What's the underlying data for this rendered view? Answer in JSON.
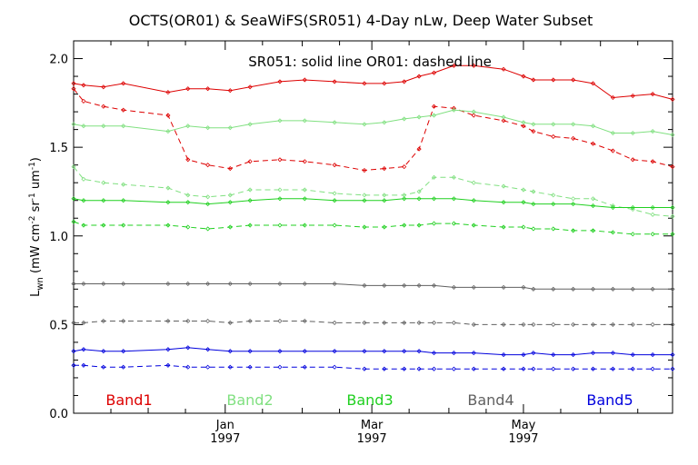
{
  "chart_data": {
    "type": "line",
    "title": "OCTS(OR01) & SeaWiFS(SR051) 4-Day nLw, Deep Water Subset",
    "annotation": "SR051: solid line   OR01: dashed line",
    "ylabel": "L_wn (mW cm^-2 sr^-1 um^-1)",
    "ylabel_parts": {
      "base": "L",
      "base_sub": "wn",
      "open": " (mW cm",
      "exp1": "-2",
      "mid1": " sr",
      "exp2": "-1",
      "mid2": " um",
      "exp3": "-1",
      "close": ")"
    },
    "ylim": [
      0.0,
      2.1
    ],
    "yticks": [
      0.0,
      0.5,
      1.0,
      1.5,
      2.0
    ],
    "ytick_labels": [
      "0.0",
      "0.5",
      "1.0",
      "1.5",
      "2.0"
    ],
    "xlim": [
      "1996-11-01",
      "1997-06-30"
    ],
    "xticks": [
      {
        "date": "1997-01-01",
        "month": "Jan",
        "year": "1997"
      },
      {
        "date": "1997-03-01",
        "month": "Mar",
        "year": "1997"
      },
      {
        "date": "1997-05-01",
        "month": "May",
        "year": "1997"
      }
    ],
    "x": [
      "1996-11-01",
      "1996-11-05",
      "1996-11-13",
      "1996-11-21",
      "1996-12-09",
      "1996-12-17",
      "1996-12-25",
      "1997-01-03",
      "1997-01-11",
      "1997-01-23",
      "1997-02-02",
      "1997-02-14",
      "1997-02-26",
      "1997-03-06",
      "1997-03-14",
      "1997-03-20",
      "1997-03-26",
      "1997-04-03",
      "1997-04-11",
      "1997-04-23",
      "1997-05-01",
      "1997-05-05",
      "1997-05-13",
      "1997-05-21",
      "1997-05-29",
      "1997-06-06",
      "1997-06-14",
      "1997-06-22",
      "1997-06-30"
    ],
    "series": [
      {
        "name": "Band1",
        "band": 1,
        "sensor": "SR051",
        "style": "solid",
        "color": "#dd0000",
        "values": [
          1.86,
          1.85,
          1.84,
          1.86,
          1.81,
          1.83,
          1.83,
          1.82,
          1.84,
          1.87,
          1.88,
          1.87,
          1.86,
          1.86,
          1.87,
          1.9,
          1.92,
          1.96,
          1.96,
          1.94,
          1.9,
          1.88,
          1.88,
          1.88,
          1.86,
          1.78,
          1.79,
          1.8,
          1.77
        ]
      },
      {
        "name": "Band1",
        "band": 1,
        "sensor": "OR01",
        "style": "dashed",
        "color": "#dd0000",
        "values": [
          1.83,
          1.76,
          1.73,
          1.71,
          1.68,
          1.43,
          1.4,
          1.38,
          1.42,
          1.43,
          1.42,
          1.4,
          1.37,
          1.38,
          1.39,
          1.49,
          1.73,
          1.72,
          1.68,
          1.65,
          1.62,
          1.59,
          1.56,
          1.55,
          1.52,
          1.48,
          1.43,
          1.42,
          1.39
        ]
      },
      {
        "name": "Band2",
        "band": 2,
        "sensor": "SR051",
        "style": "solid",
        "color": "#80e080",
        "values": [
          1.63,
          1.62,
          1.62,
          1.62,
          1.59,
          1.62,
          1.61,
          1.61,
          1.63,
          1.65,
          1.65,
          1.64,
          1.63,
          1.64,
          1.66,
          1.67,
          1.68,
          1.71,
          1.7,
          1.67,
          1.64,
          1.63,
          1.63,
          1.63,
          1.62,
          1.58,
          1.58,
          1.59,
          1.57
        ]
      },
      {
        "name": "Band2",
        "band": 2,
        "sensor": "OR01",
        "style": "dashed",
        "color": "#80e080",
        "values": [
          1.39,
          1.32,
          1.3,
          1.29,
          1.27,
          1.23,
          1.22,
          1.23,
          1.26,
          1.26,
          1.26,
          1.24,
          1.23,
          1.23,
          1.23,
          1.25,
          1.33,
          1.33,
          1.3,
          1.28,
          1.26,
          1.25,
          1.23,
          1.21,
          1.21,
          1.17,
          1.15,
          1.12,
          1.11
        ]
      },
      {
        "name": "Band3",
        "band": 3,
        "sensor": "SR051",
        "style": "solid",
        "color": "#20d020",
        "values": [
          1.21,
          1.2,
          1.2,
          1.2,
          1.19,
          1.19,
          1.18,
          1.19,
          1.2,
          1.21,
          1.21,
          1.2,
          1.2,
          1.2,
          1.21,
          1.21,
          1.21,
          1.21,
          1.2,
          1.19,
          1.19,
          1.18,
          1.18,
          1.18,
          1.17,
          1.16,
          1.16,
          1.16,
          1.16
        ]
      },
      {
        "name": "Band3",
        "band": 3,
        "sensor": "OR01",
        "style": "dashed",
        "color": "#20d020",
        "values": [
          1.08,
          1.06,
          1.06,
          1.06,
          1.06,
          1.05,
          1.04,
          1.05,
          1.06,
          1.06,
          1.06,
          1.06,
          1.05,
          1.05,
          1.06,
          1.06,
          1.07,
          1.07,
          1.06,
          1.05,
          1.05,
          1.04,
          1.04,
          1.03,
          1.03,
          1.02,
          1.01,
          1.01,
          1.01
        ]
      },
      {
        "name": "Band4",
        "band": 4,
        "sensor": "SR051",
        "style": "solid",
        "color": "#606060",
        "values": [
          0.73,
          0.73,
          0.73,
          0.73,
          0.73,
          0.73,
          0.73,
          0.73,
          0.73,
          0.73,
          0.73,
          0.73,
          0.72,
          0.72,
          0.72,
          0.72,
          0.72,
          0.71,
          0.71,
          0.71,
          0.71,
          0.7,
          0.7,
          0.7,
          0.7,
          0.7,
          0.7,
          0.7,
          0.7
        ]
      },
      {
        "name": "Band4",
        "band": 4,
        "sensor": "OR01",
        "style": "dashed",
        "color": "#606060",
        "values": [
          0.51,
          0.51,
          0.52,
          0.52,
          0.52,
          0.52,
          0.52,
          0.51,
          0.52,
          0.52,
          0.52,
          0.51,
          0.51,
          0.51,
          0.51,
          0.51,
          0.51,
          0.51,
          0.5,
          0.5,
          0.5,
          0.5,
          0.5,
          0.5,
          0.5,
          0.5,
          0.5,
          0.5,
          0.5
        ]
      },
      {
        "name": "Band5",
        "band": 5,
        "sensor": "SR051",
        "style": "solid",
        "color": "#0000dd",
        "values": [
          0.35,
          0.36,
          0.35,
          0.35,
          0.36,
          0.37,
          0.36,
          0.35,
          0.35,
          0.35,
          0.35,
          0.35,
          0.35,
          0.35,
          0.35,
          0.35,
          0.34,
          0.34,
          0.34,
          0.33,
          0.33,
          0.34,
          0.33,
          0.33,
          0.34,
          0.34,
          0.33,
          0.33,
          0.33
        ]
      },
      {
        "name": "Band5",
        "band": 5,
        "sensor": "OR01",
        "style": "dashed",
        "color": "#0000dd",
        "values": [
          0.27,
          0.27,
          0.26,
          0.26,
          0.27,
          0.26,
          0.26,
          0.26,
          0.26,
          0.26,
          0.26,
          0.26,
          0.25,
          0.25,
          0.25,
          0.25,
          0.25,
          0.25,
          0.25,
          0.25,
          0.25,
          0.25,
          0.25,
          0.25,
          0.25,
          0.25,
          0.25,
          0.25,
          0.25
        ]
      }
    ],
    "legend": [
      {
        "label": "Band1",
        "color": "#dd0000"
      },
      {
        "label": "Band2",
        "color": "#80e080"
      },
      {
        "label": "Band3",
        "color": "#20d020"
      },
      {
        "label": "Band4",
        "color": "#606060"
      },
      {
        "label": "Band5",
        "color": "#0000dd"
      }
    ],
    "legend_placement": "bottom, inside plot",
    "grid": false
  }
}
